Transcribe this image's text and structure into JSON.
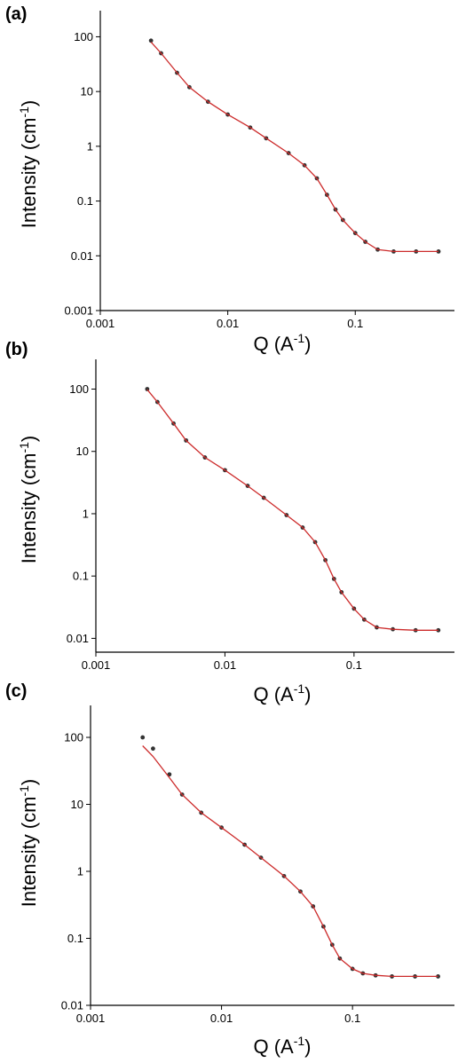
{
  "style": {
    "fit_color": "#cc2a2a",
    "data_color": "#333333",
    "axis_color": "#000000"
  },
  "chart_data": [
    {
      "panel": "(a)",
      "type": "scatter",
      "xscale": "log",
      "yscale": "log",
      "xlabel": "Q (A",
      "xlabel_sup": "-1",
      "xlabel_end": ")",
      "ylabel": "Intensity (cm",
      "ylabel_sup": "-1",
      "ylabel_end": ")",
      "xlim": [
        0.001,
        0.6
      ],
      "ylim": [
        0.001,
        300
      ],
      "xticks": [
        0.001,
        0.01,
        0.1
      ],
      "xtick_labels": [
        "0.001",
        "0.01",
        "0.1"
      ],
      "yticks": [
        0.001,
        0.01,
        0.1,
        1,
        10,
        100
      ],
      "ytick_labels": [
        "0.001",
        "0.01",
        "0.1",
        "1",
        "10",
        "100"
      ],
      "series": [
        {
          "kind": "data",
          "x": [
            0.0025,
            0.003,
            0.004,
            0.005,
            0.007,
            0.01,
            0.015,
            0.02,
            0.03,
            0.04,
            0.05,
            0.06,
            0.07,
            0.08,
            0.1,
            0.12,
            0.15,
            0.2,
            0.3,
            0.45
          ],
          "y": [
            85,
            50,
            22,
            12,
            6.5,
            3.8,
            2.2,
            1.4,
            0.75,
            0.45,
            0.26,
            0.13,
            0.07,
            0.045,
            0.026,
            0.018,
            0.013,
            0.012,
            0.012,
            0.012
          ]
        },
        {
          "kind": "fit",
          "x": [
            0.0025,
            0.003,
            0.004,
            0.005,
            0.007,
            0.01,
            0.015,
            0.02,
            0.03,
            0.04,
            0.05,
            0.06,
            0.07,
            0.08,
            0.1,
            0.12,
            0.15,
            0.2,
            0.3,
            0.45
          ],
          "y": [
            80,
            50,
            22,
            12,
            6.5,
            3.8,
            2.2,
            1.4,
            0.75,
            0.45,
            0.26,
            0.13,
            0.07,
            0.045,
            0.026,
            0.018,
            0.013,
            0.012,
            0.012,
            0.012
          ]
        }
      ]
    },
    {
      "panel": "(b)",
      "type": "scatter",
      "xscale": "log",
      "yscale": "log",
      "xlabel": "Q (A",
      "xlabel_sup": "-1",
      "xlabel_end": ")",
      "ylabel": "Intensity (cm",
      "ylabel_sup": "-1",
      "ylabel_end": ")",
      "xlim": [
        0.001,
        0.6
      ],
      "ylim": [
        0.006,
        300
      ],
      "xticks": [
        0.001,
        0.01,
        0.1
      ],
      "xtick_labels": [
        "0.001",
        "0.01",
        "0.1"
      ],
      "yticks": [
        0.01,
        0.1,
        1,
        10,
        100
      ],
      "ytick_labels": [
        "0.01",
        "0.1",
        "1",
        "10",
        "100"
      ],
      "series": [
        {
          "kind": "data",
          "x": [
            0.0025,
            0.003,
            0.004,
            0.005,
            0.007,
            0.01,
            0.015,
            0.02,
            0.03,
            0.04,
            0.05,
            0.06,
            0.07,
            0.08,
            0.1,
            0.12,
            0.15,
            0.2,
            0.3,
            0.45
          ],
          "y": [
            100,
            62,
            28,
            15,
            8,
            5,
            2.8,
            1.8,
            0.95,
            0.6,
            0.35,
            0.18,
            0.09,
            0.055,
            0.03,
            0.02,
            0.015,
            0.014,
            0.0135,
            0.0135
          ]
        },
        {
          "kind": "fit",
          "x": [
            0.0025,
            0.003,
            0.004,
            0.005,
            0.007,
            0.01,
            0.015,
            0.02,
            0.03,
            0.04,
            0.05,
            0.06,
            0.07,
            0.08,
            0.1,
            0.12,
            0.15,
            0.2,
            0.3,
            0.45
          ],
          "y": [
            98,
            62,
            28,
            15,
            8,
            5,
            2.8,
            1.8,
            0.95,
            0.6,
            0.35,
            0.18,
            0.09,
            0.055,
            0.03,
            0.02,
            0.015,
            0.014,
            0.0135,
            0.0135
          ]
        }
      ]
    },
    {
      "panel": "(c)",
      "type": "scatter",
      "xscale": "log",
      "yscale": "log",
      "xlabel": "Q (A",
      "xlabel_sup": "-1",
      "xlabel_end": ")",
      "ylabel": "Intensity (cm",
      "ylabel_sup": "-1",
      "ylabel_end": ")",
      "xlim": [
        0.001,
        0.6
      ],
      "ylim": [
        0.01,
        300
      ],
      "xticks": [
        0.001,
        0.01,
        0.1
      ],
      "xtick_labels": [
        "0.001",
        "0.01",
        "0.1"
      ],
      "yticks": [
        0.01,
        0.1,
        1,
        10,
        100
      ],
      "ytick_labels": [
        "0.01",
        "0.1",
        "1",
        "10",
        "100"
      ],
      "series": [
        {
          "kind": "data",
          "x": [
            0.0025,
            0.003,
            0.004,
            0.005,
            0.007,
            0.01,
            0.015,
            0.02,
            0.03,
            0.04,
            0.05,
            0.06,
            0.07,
            0.08,
            0.1,
            0.12,
            0.15,
            0.2,
            0.3,
            0.45
          ],
          "y": [
            100,
            68,
            28,
            14,
            7.5,
            4.5,
            2.5,
            1.6,
            0.85,
            0.5,
            0.3,
            0.15,
            0.08,
            0.05,
            0.035,
            0.03,
            0.028,
            0.027,
            0.027,
            0.027
          ]
        },
        {
          "kind": "fit",
          "x": [
            0.0025,
            0.003,
            0.004,
            0.005,
            0.007,
            0.01,
            0.015,
            0.02,
            0.03,
            0.04,
            0.05,
            0.06,
            0.07,
            0.08,
            0.1,
            0.12,
            0.15,
            0.2,
            0.3,
            0.45
          ],
          "y": [
            75,
            52,
            25,
            14,
            7.5,
            4.5,
            2.5,
            1.6,
            0.85,
            0.5,
            0.3,
            0.15,
            0.08,
            0.05,
            0.035,
            0.03,
            0.028,
            0.027,
            0.027,
            0.027
          ]
        }
      ]
    }
  ]
}
